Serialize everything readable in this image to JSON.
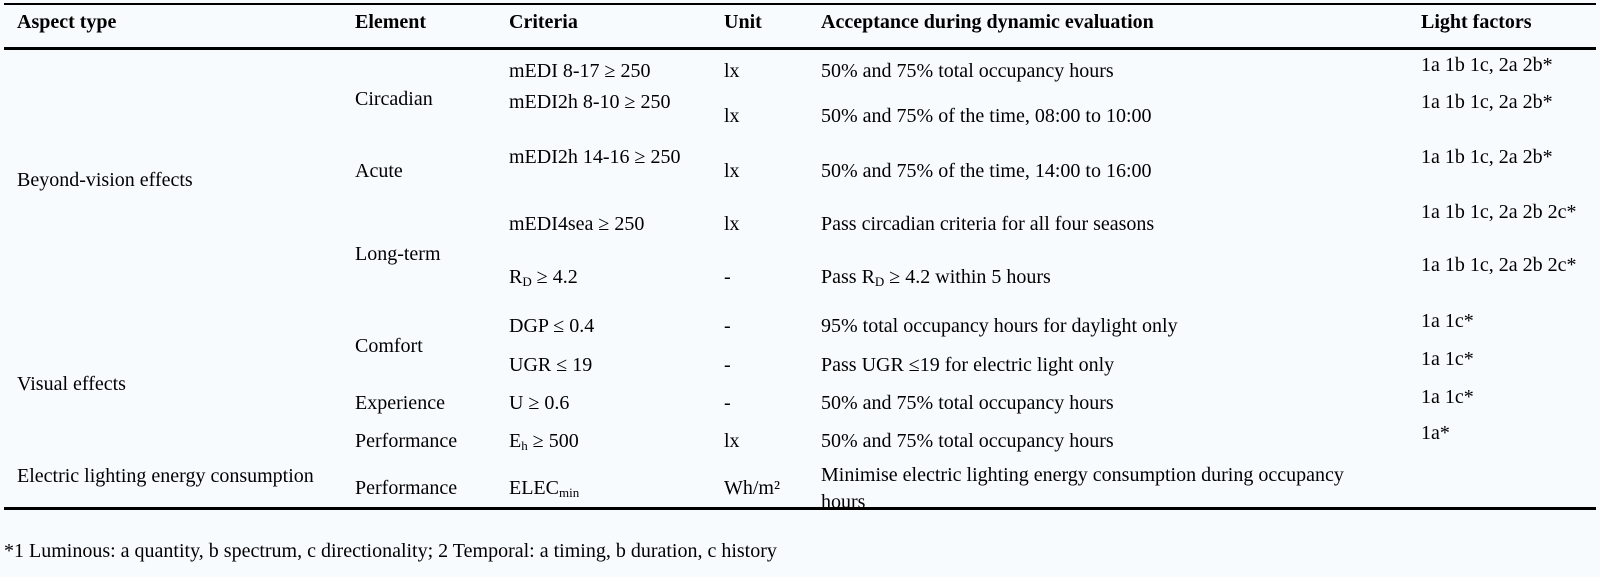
{
  "headers": {
    "aspect_type": "Aspect type",
    "element": "Element",
    "criteria": "Criteria",
    "unit": "Unit",
    "acceptance": "Acceptance during dynamic evaluation",
    "light_factors": "Light factors"
  },
  "aspects": {
    "beyond_vision": "Beyond-vision effects",
    "visual": "Visual effects",
    "electric": "Electric lighting energy consumption"
  },
  "elements": {
    "circadian": "Circadian",
    "acute": "Acute",
    "long_term": "Long-term",
    "comfort": "Comfort",
    "experience": "Experience",
    "performance_visual": "Performance",
    "performance_electric": "Performance"
  },
  "rows": [
    {
      "criteria": "mEDI 8-17 ≥ 250",
      "unit": "lx",
      "acceptance": "50% and 75% total occupancy hours",
      "factors": "1a 1b 1c, 2a 2b*"
    },
    {
      "criteria": "mEDI2h 8-10 ≥ 250",
      "unit": "lx",
      "acceptance": "50% and 75% of the time, 08:00 to 10:00",
      "factors": "1a 1b 1c, 2a 2b*"
    },
    {
      "criteria": "mEDI2h 14-16 ≥ 250",
      "unit": "lx",
      "acceptance": "50% and 75% of the time, 14:00 to 16:00",
      "factors": "1a 1b 1c, 2a 2b*"
    },
    {
      "criteria": "mEDI4sea ≥ 250",
      "unit": "lx",
      "acceptance": "Pass circadian criteria for all four seasons",
      "factors": "1a 1b 1c, 2a 2b 2c*"
    },
    {
      "criteria_main": "R",
      "criteria_sub": "D",
      "criteria_rest": " ≥ 4.2",
      "unit": "-",
      "acceptance_pre": "Pass R",
      "acceptance_sub": "D",
      "acceptance_post": " ≥ 4.2 within 5 hours",
      "factors": "1a 1b 1c, 2a 2b 2c*"
    },
    {
      "criteria": "DGP ≤ 0.4",
      "unit": "-",
      "acceptance": "95% total occupancy hours for daylight only",
      "factors": "1a 1c*"
    },
    {
      "criteria": "UGR ≤ 19",
      "unit": "-",
      "acceptance": "Pass UGR ≤19 for electric light only",
      "factors": "1a 1c*"
    },
    {
      "criteria": "U ≥ 0.6",
      "unit": "-",
      "acceptance": "50% and 75% total occupancy hours",
      "factors": "1a 1c*"
    },
    {
      "criteria_main": "E",
      "criteria_sub": "h",
      "criteria_rest": " ≥ 500",
      "unit": "lx",
      "acceptance": "50% and 75% total occupancy hours",
      "factors": "1a*"
    },
    {
      "criteria_main": "ELEC",
      "criteria_sub": "min",
      "criteria_rest": "",
      "unit": "Wh/m²",
      "acceptance": "Minimise electric lighting energy consumption during occupancy hours",
      "factors": ""
    }
  ],
  "footnote": "*1 Luminous: a quantity, b spectrum, c directionality; 2 Temporal: a timing, b duration, c history"
}
